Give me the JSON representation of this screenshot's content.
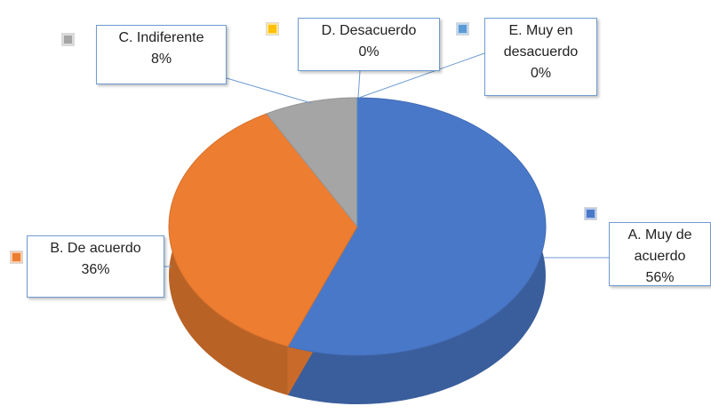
{
  "chart_data": {
    "type": "pie3d",
    "categories": [
      "A. Muy de acuerdo",
      "B. De acuerdo",
      "C. Indiferente",
      "D. Desacuerdo",
      "E. Muy en desacuerdo"
    ],
    "values": [
      56,
      36,
      8,
      0,
      0
    ],
    "value_labels": [
      "56%",
      "36%",
      "8%",
      "0%",
      "0%"
    ],
    "colors": [
      "#4a78c8",
      "#ed7d31",
      "#a5a5a5",
      "#ffc000",
      "#5b9bd5"
    ]
  }
}
